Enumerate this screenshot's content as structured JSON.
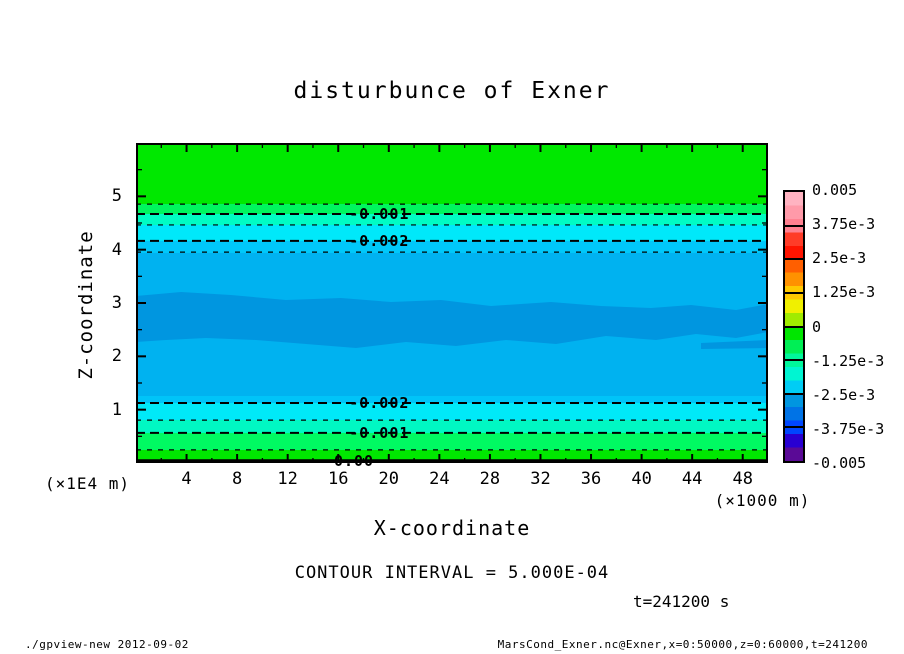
{
  "title": "disturbunce of Exner",
  "axes": {
    "x": {
      "label": "X-coordinate",
      "unit": "(×1000 m)",
      "range": [
        0,
        50
      ],
      "major_ticks": [
        4,
        8,
        12,
        16,
        20,
        24,
        28,
        32,
        36,
        40,
        44,
        48
      ],
      "minor_ticks": [
        2,
        6,
        10,
        14,
        18,
        22,
        26,
        30,
        34,
        38,
        42,
        46
      ]
    },
    "y": {
      "label": "Z-coordinate",
      "unit": "(×1E4 m)",
      "range": [
        0,
        6
      ],
      "major_ticks": [
        1,
        2,
        3,
        4,
        5
      ],
      "minor_ticks": [
        0.5,
        1.5,
        2.5,
        3.5,
        4.5,
        5.5
      ]
    }
  },
  "colorbar": {
    "labels": [
      "0.005",
      "3.75e-3",
      "2.5e-3",
      "1.25e-3",
      "0",
      "-1.25e-3",
      "-2.5e-3",
      "-3.75e-3",
      "-0.005"
    ],
    "colors_top_to_bottom": [
      "#ffb3c1",
      "#ff9aa9",
      "#ff8191",
      "#ff3c28",
      "#ff1400",
      "#ff5f00",
      "#ff9100",
      "#ffc800",
      "#f0f000",
      "#a0eb00",
      "#00e600",
      "#00ef55",
      "#00f79b",
      "#00f5d2",
      "#00cdf5",
      "#0096e0",
      "#0073e6",
      "#0046ff",
      "#2800d2",
      "#5a0a96"
    ]
  },
  "plot": {
    "frame_color": "#000000",
    "fill_bands_top_to_bottom": [
      {
        "from": 0,
        "to": 19.1,
        "color": "#00e800"
      },
      {
        "from": 19.1,
        "to": 22.2,
        "color": "#00f55f"
      },
      {
        "from": 22.2,
        "to": 25.6,
        "color": "#00fcc3"
      },
      {
        "from": 25.6,
        "to": 30.6,
        "color": "#00e8fa"
      },
      {
        "from": 30.6,
        "to": 34.4,
        "color": "#00c8fa"
      },
      {
        "from": 34.4,
        "to": 79.0,
        "color": "#00b2f0"
      },
      {
        "from": 79.0,
        "to": 81.3,
        "color": "#00c4f8"
      },
      {
        "from": 81.3,
        "to": 86.6,
        "color": "#00e9f8"
      },
      {
        "from": 86.6,
        "to": 90.6,
        "color": "#00f8c3"
      },
      {
        "from": 90.6,
        "to": 95.9,
        "color": "#00fa62"
      },
      {
        "from": 95.9,
        "to": 100,
        "color": "#00e800"
      }
    ],
    "dark_band_color": "#0096e0",
    "contour_lines": [
      {
        "y": 0.191,
        "style": "thin"
      },
      {
        "y": 0.222,
        "style": "bold",
        "label": "-0.001",
        "label_x": 0.385
      },
      {
        "y": 0.256,
        "style": "thin"
      },
      {
        "y": 0.306,
        "style": "bold",
        "label": "-0.002",
        "label_x": 0.385
      },
      {
        "y": 0.341,
        "style": "thin"
      },
      {
        "y": 0.8125,
        "style": "bold",
        "label": "-0.002",
        "label_x": 0.385
      },
      {
        "y": 0.866,
        "style": "thin"
      },
      {
        "y": 0.906,
        "style": "bold",
        "label": "-0.001",
        "label_x": 0.385
      },
      {
        "y": 0.959,
        "style": "thin"
      },
      {
        "y": 0.9938,
        "style": "solid",
        "label": "0.00",
        "label_x": 0.345
      }
    ]
  },
  "contour_interval_text": "CONTOUR INTERVAL = 5.000E-04",
  "time_label": "t=241200 s",
  "footer": {
    "left": "./gpview-new  2012-09-02",
    "right": "MarsCond_Exner.nc@Exner,x=0:50000,z=0:60000,t=241200"
  },
  "chart_data": {
    "type": "heatmap",
    "title": "disturbunce of Exner",
    "xlabel": "X-coordinate",
    "x_unit": "×1000 m",
    "xlim": [
      0,
      50
    ],
    "ylabel": "Z-coordinate",
    "y_unit": "×1E4 m",
    "ylim": [
      0,
      6
    ],
    "x_ticks": [
      4,
      8,
      12,
      16,
      20,
      24,
      28,
      32,
      36,
      40,
      44,
      48
    ],
    "y_ticks": [
      1,
      2,
      3,
      4,
      5
    ],
    "colorbar_range": [
      -0.005,
      0.005
    ],
    "contour_interval": 0.0005,
    "labeled_contours_top_to_bottom": [
      -0.001,
      -0.002,
      -0.002,
      -0.001,
      0.0
    ],
    "field_description": "horizontally quasi-uniform layers; value ~0 at top and bottom boundaries, minimum ~-0.003 in a wavy mid-level band near z=2.5-3 (x1E4 m)",
    "vertical_profile": {
      "z_x1E4_m": [
        6.0,
        5.2,
        4.65,
        4.4,
        4.15,
        3.95,
        3.3,
        2.7,
        2.0,
        1.45,
        1.1,
        0.8,
        0.55,
        0.25,
        0.0
      ],
      "exner_disturbance": [
        -0.0002,
        -0.0004,
        -0.001,
        -0.0015,
        -0.002,
        -0.0022,
        -0.0025,
        -0.003,
        -0.0027,
        -0.0022,
        -0.002,
        -0.0015,
        -0.001,
        -0.0005,
        0.0
      ]
    },
    "time": "t=241200 s",
    "legend_position": "right-colorbar",
    "grid": false
  }
}
